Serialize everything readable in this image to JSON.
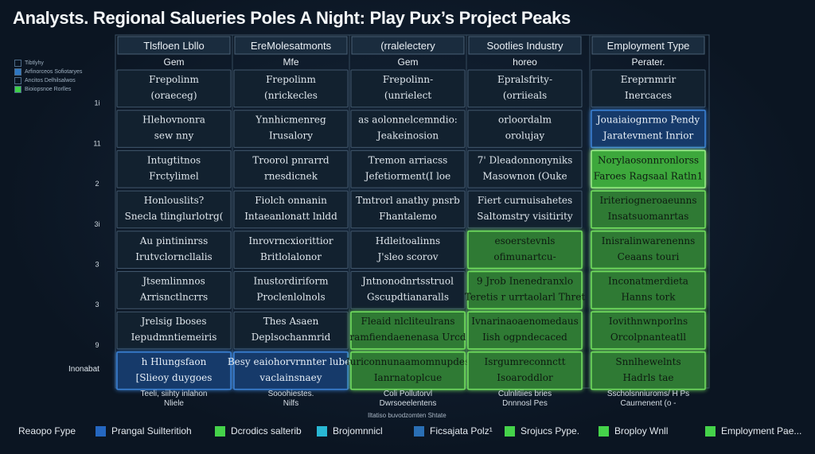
{
  "title": "Analysts. Regional Saluerieѕ Poles  A Night: Play Pux’s Project Peaks",
  "chart_data": {
    "type": "heatmap",
    "columns": [
      {
        "header": "Tlsfloen Lbllo",
        "sub": "Gem"
      },
      {
        "header": "EreMolesatmonts",
        "sub": "Mfe"
      },
      {
        "header": "(rralelectery",
        "sub": "Gem"
      },
      {
        "header": "Sootlies Industry",
        "sub": "horeo"
      },
      {
        "header": "Employment Type",
        "sub": "Perater."
      }
    ],
    "y_ticks": [
      "1i",
      "11",
      "2",
      "3i",
      "3",
      "3",
      "9"
    ],
    "rows": [
      {
        "cells": [
          {
            "lines": [
              "Frepolinm",
              "(oraeceg)"
            ],
            "level": 0
          },
          {
            "lines": [
              "Frepolinm",
              "(nrickecles"
            ],
            "level": 0
          },
          {
            "lines": [
              "Frepolinn-",
              "(unrielect"
            ],
            "level": 0
          },
          {
            "lines": [
              "Epralsfrity-",
              "(orriieals"
            ],
            "level": 0
          },
          {
            "lines": [
              "Ereprnmrir",
              "Inercaces"
            ],
            "level": 0
          }
        ]
      },
      {
        "cells": [
          {
            "lines": [
              "Hlehovnonra",
              "sew nny"
            ],
            "level": 0
          },
          {
            "lines": [
              "Ynnhicmenreg",
              "Irusalory"
            ],
            "level": 0
          },
          {
            "lines": [
              "as aolonnelcemndio:",
              "Jeakeinosion"
            ],
            "level": 0
          },
          {
            "lines": [
              "orloordalm",
              "orolujay"
            ],
            "level": 0
          },
          {
            "lines": [
              "Jouaiaiognrmo Pendy",
              "Jaratevment Inrior"
            ],
            "level": 1
          }
        ]
      },
      {
        "cells": [
          {
            "lines": [
              "Intugtitnos",
              "Frctylimel"
            ],
            "level": 0
          },
          {
            "lines": [
              "Troorol pnrarrd",
              "rnesdicnek"
            ],
            "level": 0
          },
          {
            "lines": [
              "Tremon arriacss",
              "Jefetiorment(I loe"
            ],
            "level": 0
          },
          {
            "lines": [
              "7' Dleadonnonyniks",
              "Masownon  (Ouke"
            ],
            "level": 0
          },
          {
            "lines": [
              "Norylaosonnronlorss",
              "Faroes Ragsaal  Ratln1"
            ],
            "level": 3
          }
        ]
      },
      {
        "cells": [
          {
            "lines": [
              "Honlouslits?",
              "Snecla tlinglurlotrg("
            ],
            "level": 0
          },
          {
            "lines": [
              "Fiolch onnanin",
              "Intaeanlonatt lnldd"
            ],
            "level": 0
          },
          {
            "lines": [
              "Tmtrorl anathy pnsrb",
              "Fhantalemo"
            ],
            "level": 0
          },
          {
            "lines": [
              "Fiert curnuisahetes",
              "Saltomstry visitirity"
            ],
            "level": 0
          },
          {
            "lines": [
              "Iriteriogneroaeunns",
              "Insatsuomanrtas"
            ],
            "level": 2
          }
        ]
      },
      {
        "cells": [
          {
            "lines": [
              "Au pintininrss",
              "Irutvclorncllalis"
            ],
            "level": 0
          },
          {
            "lines": [
              "Inrovrncxiorittior",
              "Britlolalonor"
            ],
            "level": 0
          },
          {
            "lines": [
              "Hdleitoalinns",
              "J'sleo scorov"
            ],
            "level": 0
          },
          {
            "lines": [
              "esoerstevnls",
              "ofimunartcu-"
            ],
            "level": 2
          },
          {
            "lines": [
              "Inisralinwarenenns",
              "Ceaans touri"
            ],
            "level": 2
          }
        ]
      },
      {
        "cells": [
          {
            "lines": [
              "Jtsemlinnnos",
              "Arrisnctlncrrs"
            ],
            "level": 0
          },
          {
            "lines": [
              "Inustordiriform",
              "Proclenlolnols"
            ],
            "level": 0
          },
          {
            "lines": [
              "Jntnonodnrtsstruol",
              "Gscupdtianaralls"
            ],
            "level": 0
          },
          {
            "lines": [
              "9 Jrob  Inenedranxlo",
              "Teretis  r urrtaolarl   Thret"
            ],
            "level": 2
          },
          {
            "lines": [
              "Inconatmerdieta",
              "Hanns tork"
            ],
            "level": 2
          }
        ]
      },
      {
        "cells": [
          {
            "lines": [
              "Jrelsig Iboses",
              "Iepudmntiemeiris"
            ],
            "level": 0
          },
          {
            "lines": [
              "Thes Asaen",
              "Deplsochanmrid"
            ],
            "level": 0
          },
          {
            "lines": [
              "Fleaid  nlcliteulrans",
              "ramfiendaenenasa     Urcd"
            ],
            "level": 2
          },
          {
            "lines": [
              "Ivnarinaoaenomedaus",
              "Iish ogpndecaced"
            ],
            "level": 2
          },
          {
            "lines": [
              "Iovithnwnporlns",
              "Orcolpnanteatll"
            ],
            "level": 2
          }
        ]
      },
      {
        "cells": [
          {
            "lines": [
              "h Hlungsfaon",
              "[Slieoy duygoes"
            ],
            "level": 1
          },
          {
            "lines": [
              "Besy  eaiohorvrnnter lubet",
              "vaclainsnaey"
            ],
            "level": 1
          },
          {
            "lines": [
              "Iuriconnunaamomnupdes",
              "Ianrnatoplcue"
            ],
            "level": 2
          },
          {
            "lines": [
              "Isrgumreconnctt",
              "Isoaroddlor"
            ],
            "level": 2
          },
          {
            "lines": [
              "Snnlhewelnts",
              "Hadrls tae"
            ],
            "level": 2
          }
        ]
      }
    ],
    "column_footers": [
      [
        "Teeli, siihty inlahon",
        "Nliele"
      ],
      [
        "Sooohiestes.",
        "Nilfs"
      ],
      [
        "Coli Pollutorvl",
        "Dwrsoeelentens"
      ],
      [
        "Culnlitiies bries",
        "Dnnnosl Pes"
      ],
      [
        "Sscholsnniuroms/ H Ps",
        "Caurnenent (o -"
      ]
    ],
    "row_extra_label": "Inonabat",
    "footer_note": "Iltatiso buvodzomten Shtate",
    "legend_top": [
      {
        "label": "Tibtlyhy",
        "color": "#0b1522"
      },
      {
        "label": "Arfinorceos Sofiotaryes",
        "color": "#2f78c4"
      },
      {
        "label": "Ancitos Delhilsalwos",
        "color": "#0b1522"
      },
      {
        "label": "Bioiopsnoe Rorlles",
        "color": "#3fcf4a"
      }
    ],
    "legend": [
      {
        "label": "Reaopo Fype",
        "color": "#1a5fa3"
      },
      {
        "label": "Prangal Suilteritioh",
        "color": "#2567c0"
      },
      {
        "label": "Dcrodics salterib",
        "color": "#45d24a"
      },
      {
        "label": "Brojomnnicl",
        "color": "#29b8d4"
      },
      {
        "label": "Ficsajata Polz¹",
        "color": "#2a6fb5"
      },
      {
        "label": "Srojucs Pype.",
        "color": "#45d24a"
      },
      {
        "label": "Broploy  Wnll",
        "color": "#45d24a"
      },
      {
        "label": "Employment Pae...",
        "color": "#45d24a"
      }
    ],
    "colors": {
      "level0_fill": "#12212f",
      "level0_stroke": "#41576c",
      "level1_fill": "#163a6a",
      "level1_stroke": "#3b82d6",
      "level2_fill": "#2f7a34",
      "level2_stroke": "#72e05f",
      "level3_fill": "#3da83c",
      "level3_stroke": "#9ef28a"
    }
  }
}
